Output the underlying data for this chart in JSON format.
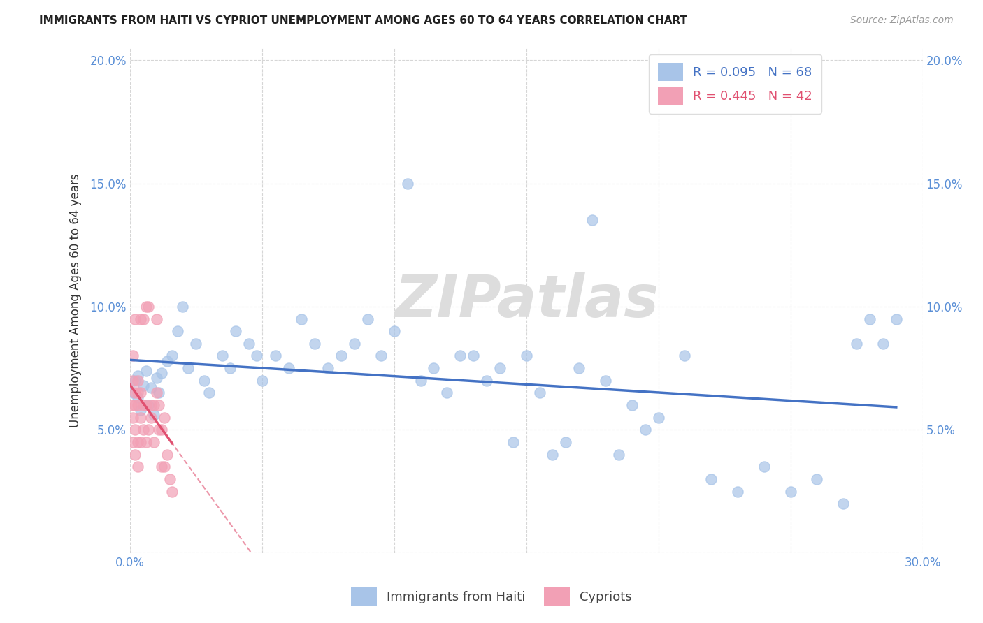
{
  "title": "IMMIGRANTS FROM HAITI VS CYPRIOT UNEMPLOYMENT AMONG AGES 60 TO 64 YEARS CORRELATION CHART",
  "source": "Source: ZipAtlas.com",
  "ylabel_label": "Unemployment Among Ages 60 to 64 years",
  "legend_label1": "Immigrants from Haiti",
  "legend_label2": "Cypriots",
  "r1": 0.095,
  "n1": 68,
  "r2": 0.445,
  "n2": 42,
  "xlim": [
    0.0,
    0.3
  ],
  "ylim": [
    0.0,
    0.205
  ],
  "xticks": [
    0.0,
    0.05,
    0.1,
    0.15,
    0.2,
    0.25,
    0.3
  ],
  "yticks": [
    0.0,
    0.05,
    0.1,
    0.15,
    0.2
  ],
  "color_blue": "#a8c4e8",
  "color_pink": "#f2a0b5",
  "color_blue_dark": "#4472c4",
  "color_pink_dark": "#e05070",
  "trendline_blue": "#4472c4",
  "trendline_pink": "#e05070",
  "haiti_x": [
    0.001,
    0.002,
    0.003,
    0.003,
    0.004,
    0.005,
    0.006,
    0.007,
    0.008,
    0.009,
    0.01,
    0.011,
    0.012,
    0.014,
    0.016,
    0.018,
    0.02,
    0.022,
    0.025,
    0.028,
    0.03,
    0.035,
    0.038,
    0.04,
    0.045,
    0.048,
    0.05,
    0.055,
    0.06,
    0.065,
    0.07,
    0.075,
    0.08,
    0.085,
    0.09,
    0.095,
    0.1,
    0.105,
    0.11,
    0.115,
    0.12,
    0.125,
    0.13,
    0.135,
    0.14,
    0.145,
    0.15,
    0.155,
    0.16,
    0.165,
    0.17,
    0.175,
    0.18,
    0.185,
    0.19,
    0.195,
    0.2,
    0.21,
    0.22,
    0.23,
    0.24,
    0.25,
    0.26,
    0.27,
    0.275,
    0.28,
    0.285,
    0.29
  ],
  "haiti_y": [
    0.065,
    0.07,
    0.063,
    0.072,
    0.058,
    0.068,
    0.074,
    0.06,
    0.067,
    0.056,
    0.071,
    0.065,
    0.073,
    0.078,
    0.08,
    0.09,
    0.1,
    0.075,
    0.085,
    0.07,
    0.065,
    0.08,
    0.075,
    0.09,
    0.085,
    0.08,
    0.07,
    0.08,
    0.075,
    0.095,
    0.085,
    0.075,
    0.08,
    0.085,
    0.095,
    0.08,
    0.09,
    0.15,
    0.07,
    0.075,
    0.065,
    0.08,
    0.08,
    0.07,
    0.075,
    0.045,
    0.08,
    0.065,
    0.04,
    0.045,
    0.075,
    0.135,
    0.07,
    0.04,
    0.06,
    0.05,
    0.055,
    0.08,
    0.03,
    0.025,
    0.035,
    0.025,
    0.03,
    0.02,
    0.085,
    0.095,
    0.085,
    0.095
  ],
  "cyprus_x": [
    0.0005,
    0.001,
    0.001,
    0.001,
    0.001,
    0.002,
    0.002,
    0.002,
    0.002,
    0.002,
    0.003,
    0.003,
    0.003,
    0.003,
    0.003,
    0.004,
    0.004,
    0.004,
    0.004,
    0.005,
    0.005,
    0.005,
    0.006,
    0.006,
    0.006,
    0.007,
    0.007,
    0.008,
    0.008,
    0.009,
    0.009,
    0.01,
    0.01,
    0.011,
    0.011,
    0.012,
    0.012,
    0.013,
    0.013,
    0.014,
    0.015,
    0.016
  ],
  "cyprus_y": [
    0.06,
    0.045,
    0.055,
    0.07,
    0.08,
    0.04,
    0.05,
    0.06,
    0.065,
    0.095,
    0.035,
    0.045,
    0.06,
    0.065,
    0.07,
    0.045,
    0.055,
    0.065,
    0.095,
    0.05,
    0.06,
    0.095,
    0.045,
    0.06,
    0.1,
    0.05,
    0.1,
    0.055,
    0.06,
    0.045,
    0.06,
    0.065,
    0.095,
    0.05,
    0.06,
    0.035,
    0.05,
    0.035,
    0.055,
    0.04,
    0.03,
    0.025
  ]
}
